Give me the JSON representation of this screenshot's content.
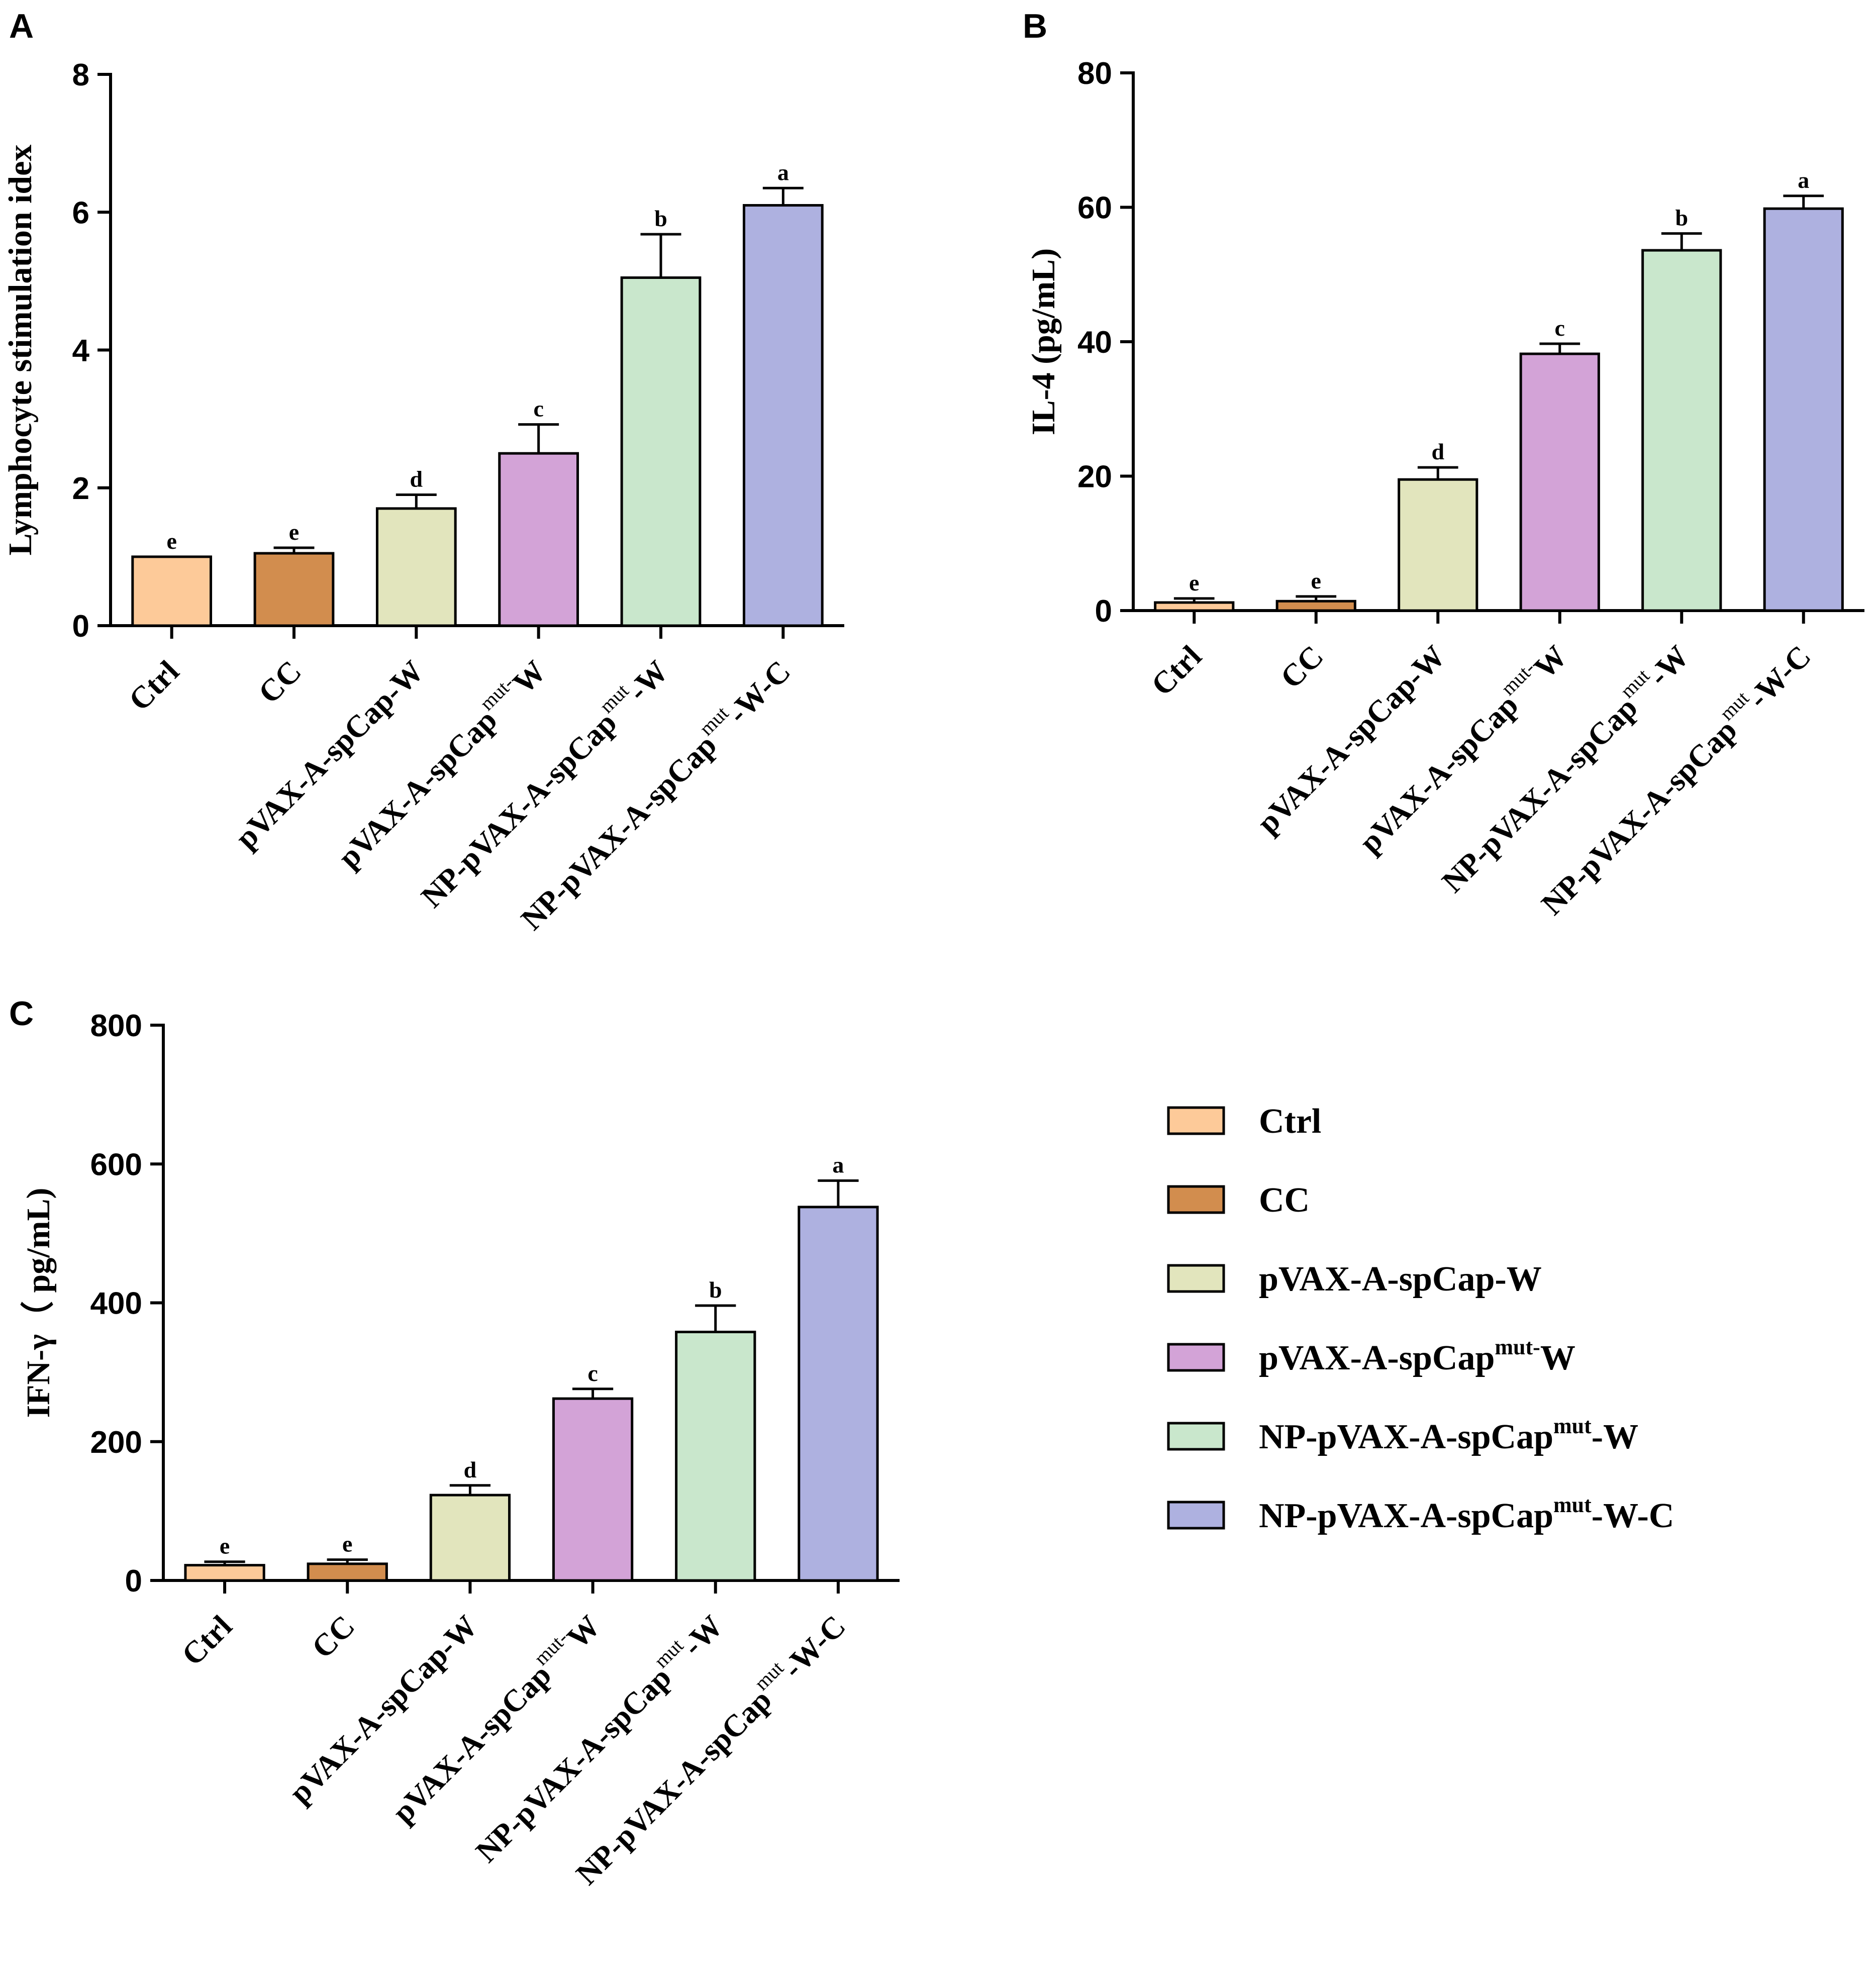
{
  "panel_letters": [
    "A",
    "B",
    "C"
  ],
  "groups": [
    {
      "name": "Ctrl",
      "base": "Ctrl",
      "sup": "",
      "suffix": "",
      "color": "#FDCA99"
    },
    {
      "name": "CC",
      "base": "CC",
      "sup": "",
      "suffix": "",
      "color": "#D28D4E"
    },
    {
      "name": "pVAX-A-spCap-W",
      "base": "pVAX-A-spCap-W",
      "sup": "",
      "suffix": "",
      "color": "#E2E5BD"
    },
    {
      "name": "pVAX-A-spCapmut-W",
      "base": "pVAX-A-spCap",
      "sup": "mut-",
      "suffix": "W",
      "color": "#D3A3D7"
    },
    {
      "name": "NP-pVAX-A-spCapmut-W",
      "base": "NP-pVAX-A-spCap",
      "sup": "mut",
      "suffix": "-W",
      "color": "#C9E7CC"
    },
    {
      "name": "NP-pVAX-A-spCapmut-W-C",
      "base": "NP-pVAX-A-spCap",
      "sup": "mut",
      "suffix": "-W-C",
      "color": "#AEB1E0"
    }
  ],
  "chart_data": [
    {
      "panel": "A",
      "type": "bar",
      "title": "",
      "xlabel": "",
      "ylabel": "Lymphocyte stimulation idex",
      "ylim": [
        0,
        8
      ],
      "yticks": [
        "0",
        "2",
        "4",
        "6",
        "8"
      ],
      "categories": [
        "Ctrl",
        "CC",
        "pVAX-A-spCap-W",
        "pVAX-A-spCapmut-W",
        "NP-pVAX-A-spCapmut-W",
        "NP-pVAX-A-spCapmut-W-C"
      ],
      "values": [
        1.0,
        1.05,
        1.7,
        2.5,
        5.05,
        6.1
      ],
      "errors": [
        0.0,
        0.08,
        0.2,
        0.42,
        0.63,
        0.25
      ],
      "significance": [
        "e",
        "e",
        "d",
        "c",
        "b",
        "a"
      ]
    },
    {
      "panel": "B",
      "type": "bar",
      "title": "",
      "xlabel": "",
      "ylabel": "IL-4 (pg/mL)",
      "ylim": [
        0,
        80
      ],
      "yticks": [
        "0",
        "20",
        "40",
        "60",
        "80"
      ],
      "categories": [
        "Ctrl",
        "CC",
        "pVAX-A-spCap-W",
        "pVAX-A-spCapmut-W",
        "NP-pVAX-A-spCapmut-W",
        "NP-pVAX-A-spCapmut-W-C"
      ],
      "values": [
        1.2,
        1.4,
        19.5,
        38.2,
        53.6,
        59.8
      ],
      "errors": [
        0.6,
        0.7,
        1.8,
        1.5,
        2.5,
        1.9
      ],
      "significance": [
        "e",
        "e",
        "d",
        "c",
        "b",
        "a"
      ]
    },
    {
      "panel": "C",
      "type": "bar",
      "title": "",
      "xlabel": "",
      "ylabel": "IFN-γ（ pg/mL)",
      "ylim": [
        0,
        800
      ],
      "yticks": [
        "0",
        "200",
        "400",
        "600",
        "800"
      ],
      "categories": [
        "Ctrl",
        "CC",
        "pVAX-A-spCap-W",
        "pVAX-A-spCapmut-W",
        "NP-pVAX-A-spCapmut-W",
        "NP-pVAX-A-spCapmut-W-C"
      ],
      "values": [
        22,
        24,
        123,
        262,
        358,
        538
      ],
      "errors": [
        5,
        6,
        14,
        14,
        38,
        38
      ],
      "significance": [
        "e",
        "e",
        "d",
        "c",
        "b",
        "a"
      ]
    }
  ],
  "legend": {
    "placement": "bottom-right",
    "entries": [
      {
        "base": "Ctrl",
        "sup": "",
        "suffix": ""
      },
      {
        "base": "CC",
        "sup": "",
        "suffix": ""
      },
      {
        "base": "pVAX-A-spCap-W",
        "sup": "",
        "suffix": ""
      },
      {
        "base": "pVAX-A-spCap",
        "sup": "mut-",
        "suffix": "W"
      },
      {
        "base": "NP-pVAX-A-spCap",
        "sup": "mut",
        "suffix": "-W"
      },
      {
        "base": "NP-pVAX-A-spCap",
        "sup": "mut",
        "suffix": "-W-C"
      }
    ]
  }
}
